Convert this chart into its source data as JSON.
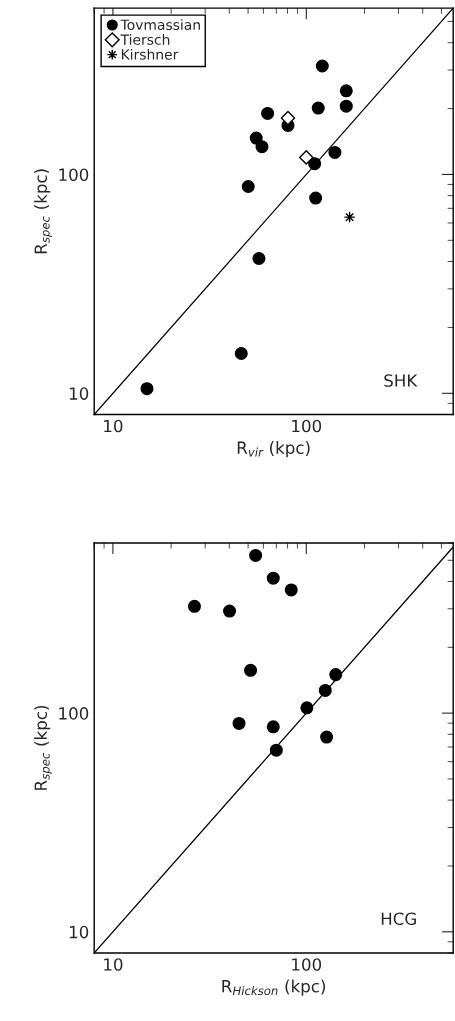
{
  "chart_data": [
    {
      "type": "scatter",
      "xlabel": "R$_{vir}$ (kpc)",
      "ylabel": "R$_{spec}$ (kpc)",
      "log": "xy",
      "xlim": [
        8,
        575
      ],
      "ylim": [
        8,
        575
      ],
      "xticks": [
        10,
        100
      ],
      "yticks": [
        10,
        100
      ],
      "legend": "top left",
      "annotations": [
        "SHK"
      ],
      "series": [
        {
          "name": "Tovmassian",
          "color": "#000000",
          "marker": "circle",
          "x": [
            15.0,
            46.1,
            56.9,
            50.1,
            55.1,
            59.0,
            63.1,
            80.4,
            121,
            115.3,
            161,
            161,
            140.6,
            110.5,
            111.8
          ],
          "values": [
            10.5,
            15.2,
            41.3,
            88.1,
            146.6,
            133.9,
            190,
            167.5,
            313,
            201,
            241,
            205,
            126,
            112,
            78
          ]
        },
        {
          "name": "Tiersch",
          "color": "#000000",
          "marker": "diamond",
          "x": [
            80.4,
            100
          ],
          "values": [
            181,
            119.6
          ]
        },
        {
          "name": "Kirshner",
          "color": "#000000",
          "marker": "cross",
          "x": [
            167.5
          ],
          "values": [
            63.8
          ]
        },
        {
          "type": "line",
          "color": "#000000",
          "marker": "none",
          "x": [
            8,
            575
          ],
          "values": [
            8,
            575
          ]
        }
      ]
    },
    {
      "type": "scatter",
      "xlabel": "R$_{Hickson}$ (kpc)",
      "ylabel": "R$_{spec}$ (kpc)",
      "log": "xy",
      "xlim": [
        8,
        575
      ],
      "ylim": [
        8,
        600
      ],
      "xticks": [
        10,
        100
      ],
      "yticks": [
        10,
        100
      ],
      "annotations": [
        "HCG"
      ],
      "series": [
        {
          "color": "#000000",
          "marker": "circle",
          "x": [
            54.7,
            67.5,
            83.6,
            26.4,
            40.1,
            51.5,
            142,
            125.4,
            100.7,
            44.9,
            67.5,
            70,
            127.4
          ],
          "values": [
            526,
            414,
            366,
            308,
            293,
            157,
            150,
            127,
            105.8,
            89.7,
            86.6,
            67.7,
            77.7
          ]
        },
        {
          "type": "line",
          "color": "#000000",
          "marker": "none",
          "x": [
            8,
            575
          ],
          "values": [
            8,
            575
          ]
        }
      ]
    }
  ]
}
